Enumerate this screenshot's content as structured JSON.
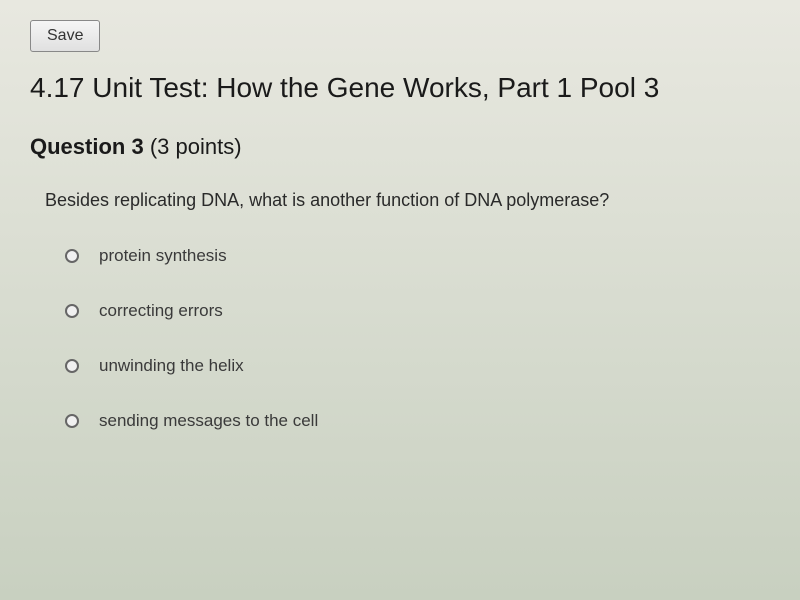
{
  "toolbar": {
    "save_label": "Save"
  },
  "test": {
    "title": "4.17 Unit Test: How the Gene Works, Part 1 Pool 3"
  },
  "question": {
    "label": "Question 3",
    "points": "(3 points)",
    "text": "Besides replicating DNA, what is another function of DNA polymerase?",
    "options": [
      "protein synthesis",
      "correcting errors",
      "unwinding the helix",
      "sending messages to the cell"
    ]
  },
  "colors": {
    "background_gradient_top": "#e8e8e0",
    "background_gradient_bottom": "#c8d0c0",
    "text_primary": "#1a1a1a",
    "text_secondary": "#3a3a3a",
    "button_border": "#888888",
    "radio_border": "#666666"
  }
}
